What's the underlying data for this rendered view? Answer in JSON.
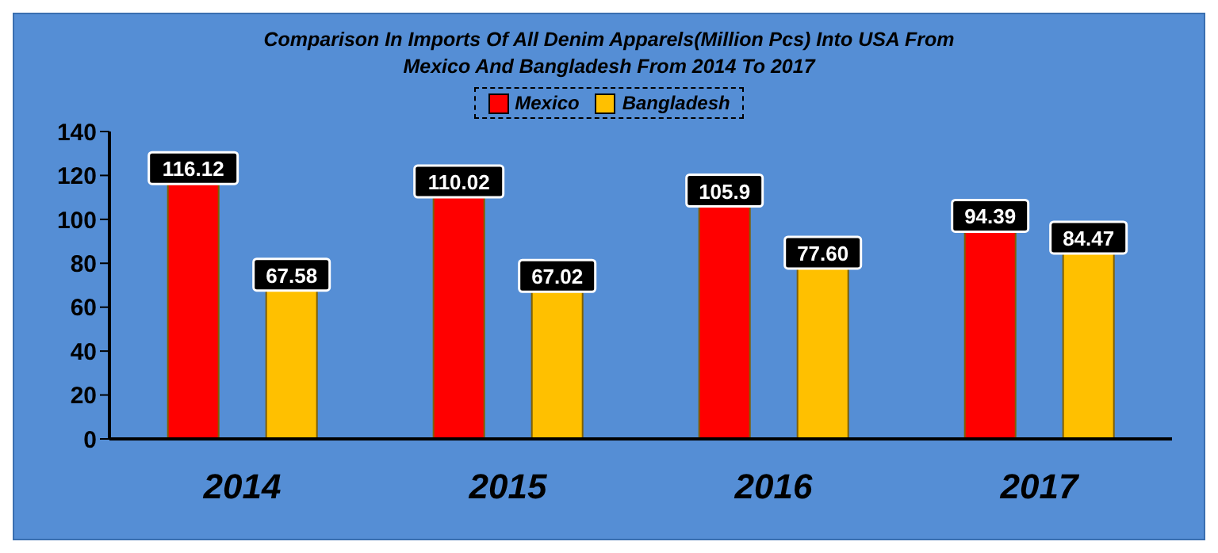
{
  "chart_data": {
    "type": "bar",
    "title": "Comparison In Imports Of All Denim Apparels(Million Pcs) Into USA From Mexico And Bangladesh From 2014 To 2017",
    "categories": [
      "2014",
      "2015",
      "2016",
      "2017"
    ],
    "series": [
      {
        "name": "Mexico",
        "color": "#ff0000",
        "values": [
          116.12,
          110.02,
          105.9,
          94.39
        ],
        "value_labels": [
          "116.12",
          "110.02",
          "105.9",
          "94.39"
        ]
      },
      {
        "name": "Bangladesh",
        "color": "#ffc000",
        "values": [
          67.58,
          67.02,
          77.6,
          84.47
        ],
        "value_labels": [
          "67.58",
          "67.02",
          "77.60",
          "84.47"
        ]
      }
    ],
    "ylim": [
      0,
      140
    ],
    "yticks": [
      0,
      20,
      40,
      60,
      80,
      100,
      120,
      140
    ],
    "legend": "top"
  }
}
